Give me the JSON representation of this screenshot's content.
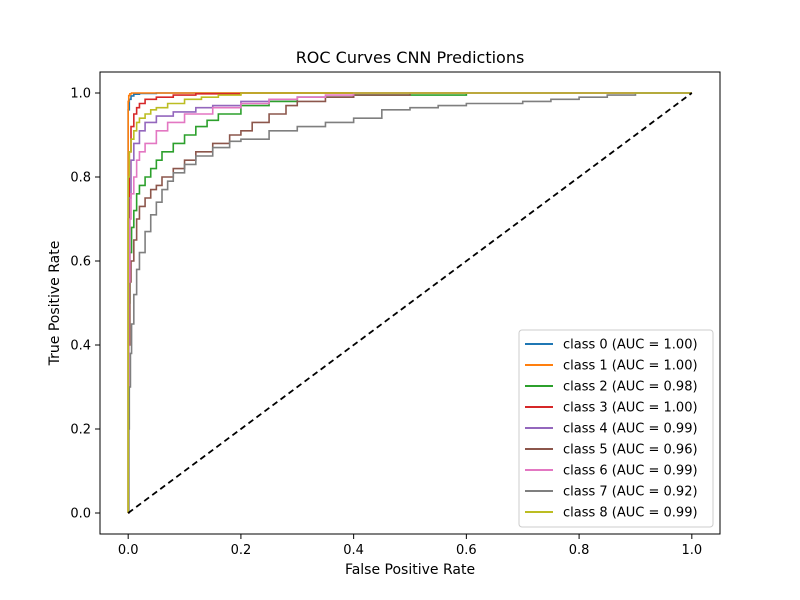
{
  "chart_data": {
    "type": "line",
    "title": "ROC Curves CNN Predictions",
    "xlabel": "False Positive Rate",
    "ylabel": "True Positive Rate",
    "xlim": [
      -0.05,
      1.05
    ],
    "ylim": [
      -0.05,
      1.05
    ],
    "xticks": [
      "0.0",
      "0.2",
      "0.4",
      "0.6",
      "0.8",
      "1.0"
    ],
    "yticks": [
      "0.0",
      "0.2",
      "0.4",
      "0.6",
      "0.8",
      "1.0"
    ],
    "grid": false,
    "legend_position": "lower-right",
    "reference_line": {
      "x": [
        0,
        1
      ],
      "y": [
        0,
        1
      ],
      "style": "dashed",
      "color": "#000000"
    },
    "series": [
      {
        "name": "class 0 (AUC = 1.00)",
        "color": "#1f77b4",
        "x": [
          0,
          0,
          0.002,
          0.005,
          0.01,
          0.02,
          0.05,
          1.0
        ],
        "y": [
          0,
          0.96,
          0.985,
          0.993,
          0.997,
          0.999,
          1.0,
          1.0
        ]
      },
      {
        "name": "class 1 (AUC = 1.00)",
        "color": "#ff7f0e",
        "x": [
          0,
          0,
          0.001,
          0.003,
          0.006,
          0.01,
          1.0
        ],
        "y": [
          0,
          0.98,
          0.994,
          0.998,
          1.0,
          1.0,
          1.0
        ]
      },
      {
        "name": "class 2 (AUC = 0.98)",
        "color": "#2ca02c",
        "x": [
          0,
          0.001,
          0.003,
          0.006,
          0.01,
          0.015,
          0.02,
          0.03,
          0.04,
          0.05,
          0.06,
          0.08,
          0.1,
          0.12,
          0.14,
          0.16,
          0.2,
          0.25,
          0.3,
          0.4,
          0.6,
          1.0
        ],
        "y": [
          0,
          0.5,
          0.62,
          0.68,
          0.72,
          0.76,
          0.78,
          0.8,
          0.82,
          0.84,
          0.86,
          0.88,
          0.9,
          0.92,
          0.935,
          0.95,
          0.97,
          0.98,
          0.99,
          0.995,
          1.0,
          1.0
        ]
      },
      {
        "name": "class 3 (AUC = 1.00)",
        "color": "#d62728",
        "x": [
          0,
          0,
          0.002,
          0.005,
          0.01,
          0.015,
          0.02,
          0.03,
          0.05,
          0.08,
          0.12,
          0.2,
          1.0
        ],
        "y": [
          0,
          0.7,
          0.86,
          0.92,
          0.95,
          0.965,
          0.975,
          0.985,
          0.99,
          0.995,
          0.998,
          1.0,
          1.0
        ]
      },
      {
        "name": "class 4 (AUC = 0.99)",
        "color": "#9467bd",
        "x": [
          0,
          0.001,
          0.005,
          0.01,
          0.02,
          0.03,
          0.05,
          0.08,
          0.12,
          0.15,
          0.2,
          0.25,
          0.3,
          0.4,
          1.0
        ],
        "y": [
          0,
          0.75,
          0.84,
          0.88,
          0.91,
          0.93,
          0.945,
          0.955,
          0.965,
          0.97,
          0.98,
          0.985,
          0.99,
          1.0,
          1.0
        ]
      },
      {
        "name": "class 5 (AUC = 0.96)",
        "color": "#8c564b",
        "x": [
          0,
          0.001,
          0.003,
          0.005,
          0.01,
          0.015,
          0.02,
          0.03,
          0.04,
          0.05,
          0.06,
          0.08,
          0.1,
          0.12,
          0.15,
          0.18,
          0.2,
          0.22,
          0.25,
          0.28,
          0.3,
          0.35,
          0.4,
          0.5,
          0.6,
          1.0
        ],
        "y": [
          0,
          0.4,
          0.55,
          0.6,
          0.65,
          0.7,
          0.73,
          0.75,
          0.77,
          0.78,
          0.8,
          0.82,
          0.84,
          0.86,
          0.88,
          0.9,
          0.91,
          0.93,
          0.95,
          0.97,
          0.98,
          0.99,
          0.995,
          1.0,
          1.0,
          1.0
        ]
      },
      {
        "name": "class 6 (AUC = 0.99)",
        "color": "#e377c2",
        "x": [
          0,
          0.001,
          0.003,
          0.005,
          0.01,
          0.015,
          0.02,
          0.03,
          0.05,
          0.07,
          0.1,
          0.15,
          0.2,
          0.25,
          0.3,
          0.35,
          0.4,
          0.5,
          1.0
        ],
        "y": [
          0,
          0.55,
          0.7,
          0.76,
          0.8,
          0.84,
          0.86,
          0.88,
          0.91,
          0.93,
          0.95,
          0.965,
          0.975,
          0.985,
          0.99,
          0.995,
          1.0,
          1.0,
          1.0
        ]
      },
      {
        "name": "class 7 (AUC = 0.92)",
        "color": "#7f7f7f",
        "x": [
          0,
          0.001,
          0.002,
          0.004,
          0.006,
          0.01,
          0.015,
          0.02,
          0.03,
          0.04,
          0.05,
          0.06,
          0.07,
          0.08,
          0.1,
          0.12,
          0.15,
          0.18,
          0.2,
          0.25,
          0.3,
          0.35,
          0.4,
          0.45,
          0.5,
          0.55,
          0.6,
          0.7,
          0.75,
          0.8,
          0.85,
          0.9,
          0.95,
          1.0
        ],
        "y": [
          0,
          0.2,
          0.3,
          0.38,
          0.45,
          0.52,
          0.58,
          0.62,
          0.67,
          0.71,
          0.74,
          0.77,
          0.79,
          0.81,
          0.83,
          0.85,
          0.87,
          0.885,
          0.89,
          0.91,
          0.92,
          0.93,
          0.94,
          0.96,
          0.965,
          0.97,
          0.975,
          0.98,
          0.985,
          0.99,
          0.995,
          1.0,
          1.0,
          1.0
        ]
      },
      {
        "name": "class 8 (AUC = 0.99)",
        "color": "#bcbd22",
        "x": [
          0,
          0,
          0.002,
          0.005,
          0.01,
          0.015,
          0.02,
          0.03,
          0.04,
          0.05,
          0.07,
          0.1,
          0.13,
          0.16,
          0.2,
          0.25,
          0.3,
          1.0
        ],
        "y": [
          0,
          0.8,
          0.86,
          0.89,
          0.91,
          0.93,
          0.94,
          0.95,
          0.96,
          0.965,
          0.975,
          0.985,
          0.99,
          0.995,
          1.0,
          1.0,
          1.0,
          1.0
        ]
      }
    ]
  }
}
